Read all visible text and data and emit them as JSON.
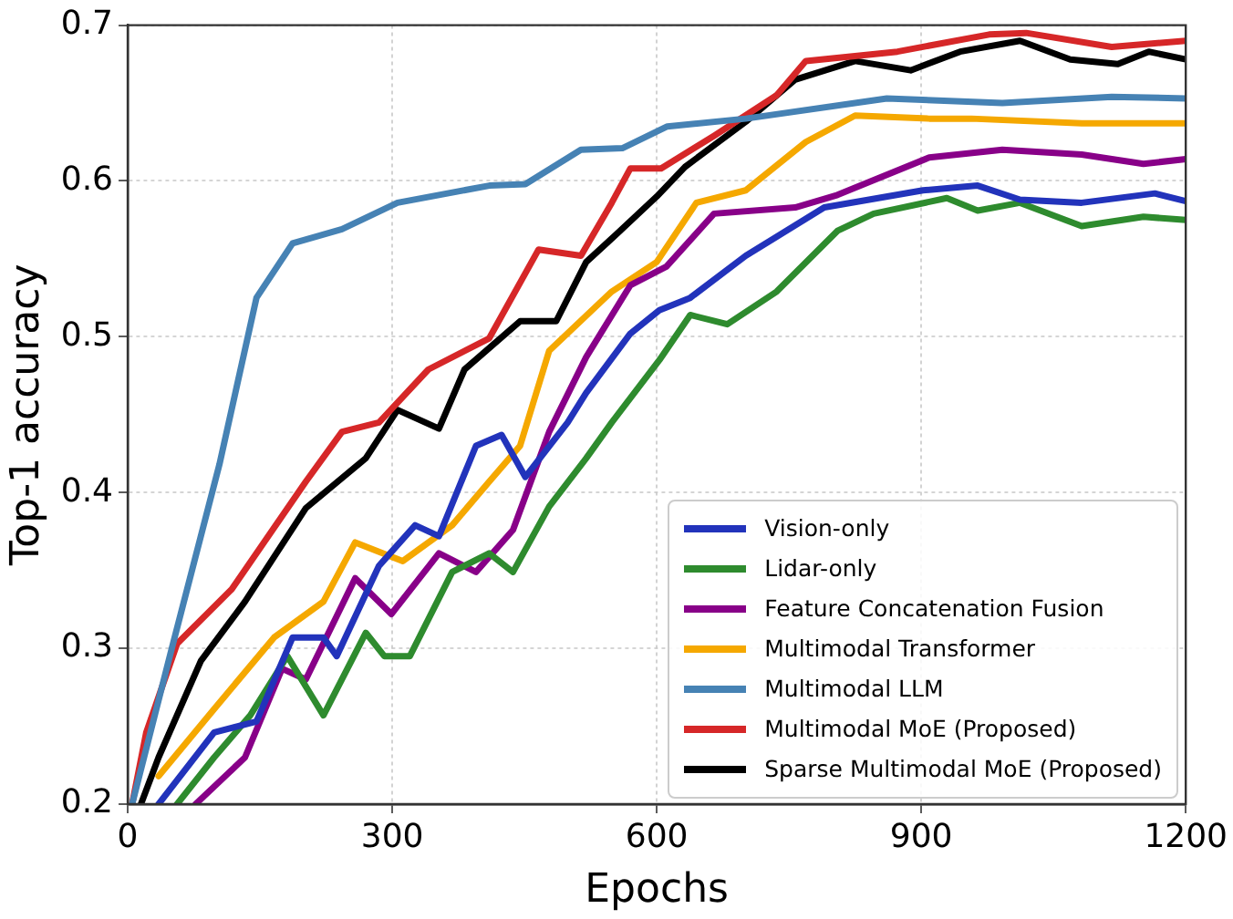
{
  "chart_data": {
    "type": "line",
    "xlabel": "Epochs",
    "ylabel": "Top-1 accuracy",
    "xlim": [
      0,
      1200
    ],
    "xticks": [
      0,
      300,
      600,
      900,
      1200
    ],
    "ylim": [
      0.2,
      0.7
    ],
    "yticks": [
      0.2,
      0.3,
      0.4,
      0.5,
      0.6,
      0.7
    ],
    "grid": true,
    "legend": "bottom right",
    "marker": "none",
    "line_style": "solid",
    "series": [
      {
        "name": "Vision-only",
        "color": "#2233bb",
        "x": [
          35,
          98,
          146,
          187,
          222,
          237,
          285,
          326,
          353,
          395,
          424,
          451,
          499,
          520,
          570,
          603,
          638,
          701,
          790,
          902,
          964,
          1012,
          1082,
          1165,
          1200
        ],
        "values": [
          0.2,
          0.246,
          0.253,
          0.307,
          0.307,
          0.295,
          0.353,
          0.379,
          0.372,
          0.43,
          0.437,
          0.41,
          0.445,
          0.464,
          0.502,
          0.517,
          0.525,
          0.552,
          0.583,
          0.594,
          0.597,
          0.588,
          0.586,
          0.592,
          0.587
        ]
      },
      {
        "name": "Lidar-only",
        "color": "#2e8b2e",
        "x": [
          56,
          98,
          139,
          181,
          222,
          270,
          291,
          320,
          368,
          410,
          437,
          478,
          520,
          549,
          603,
          638,
          680,
          736,
          805,
          846,
          929,
          964,
          1012,
          1082,
          1152,
          1200
        ],
        "values": [
          0.2,
          0.23,
          0.257,
          0.295,
          0.257,
          0.31,
          0.295,
          0.295,
          0.349,
          0.361,
          0.349,
          0.391,
          0.422,
          0.445,
          0.485,
          0.514,
          0.508,
          0.529,
          0.568,
          0.579,
          0.589,
          0.581,
          0.586,
          0.571,
          0.577,
          0.575
        ]
      },
      {
        "name": "Feature Concatenation Fusion",
        "color": "#880088",
        "x": [
          77,
          133,
          175,
          202,
          258,
          299,
          353,
          395,
          437,
          478,
          520,
          570,
          611,
          665,
          757,
          805,
          909,
          992,
          1082,
          1152,
          1200
        ],
        "values": [
          0.2,
          0.23,
          0.287,
          0.28,
          0.345,
          0.322,
          0.361,
          0.349,
          0.376,
          0.439,
          0.487,
          0.533,
          0.545,
          0.579,
          0.583,
          0.591,
          0.615,
          0.62,
          0.617,
          0.611,
          0.614
        ]
      },
      {
        "name": "Multimodal Transformer",
        "color": "#f5a800",
        "x": [
          35,
          98,
          166,
          222,
          258,
          312,
          368,
          410,
          445,
          478,
          549,
          600,
          645,
          701,
          769,
          825,
          909,
          957,
          1082,
          1200
        ],
        "values": [
          0.218,
          0.261,
          0.307,
          0.33,
          0.368,
          0.356,
          0.379,
          0.407,
          0.43,
          0.491,
          0.529,
          0.548,
          0.586,
          0.594,
          0.625,
          0.642,
          0.64,
          0.64,
          0.637,
          0.637
        ]
      },
      {
        "name": "Multimodal LLM",
        "color": "#4682b4",
        "x": [
          5,
          50,
          104,
          146,
          187,
          243,
          306,
          410,
          451,
          514,
          561,
          612,
          701,
          861,
          992,
          1116,
          1200
        ],
        "values": [
          0.2,
          0.3,
          0.418,
          0.525,
          0.56,
          0.569,
          0.586,
          0.597,
          0.598,
          0.62,
          0.621,
          0.635,
          0.64,
          0.653,
          0.65,
          0.654,
          0.653
        ]
      },
      {
        "name": "Multimodal MoE (Proposed)",
        "color": "#d62728",
        "x": [
          5,
          21,
          56,
          118,
          202,
          243,
          285,
          341,
          410,
          466,
          514,
          549,
          570,
          605,
          665,
          736,
          769,
          873,
          977,
          1019,
          1116,
          1200
        ],
        "values": [
          0.2,
          0.246,
          0.303,
          0.338,
          0.407,
          0.439,
          0.445,
          0.479,
          0.499,
          0.556,
          0.552,
          0.586,
          0.608,
          0.608,
          0.629,
          0.655,
          0.677,
          0.683,
          0.694,
          0.695,
          0.686,
          0.69
        ]
      },
      {
        "name": "Sparse Multimodal MoE (Proposed)",
        "color": "#000000",
        "x": [
          15,
          35,
          83,
          133,
          202,
          270,
          306,
          353,
          382,
          445,
          486,
          520,
          549,
          600,
          632,
          701,
          757,
          825,
          888,
          944,
          1012,
          1069,
          1123,
          1158,
          1200
        ],
        "values": [
          0.2,
          0.23,
          0.292,
          0.33,
          0.39,
          0.422,
          0.453,
          0.441,
          0.479,
          0.51,
          0.51,
          0.548,
          0.563,
          0.59,
          0.609,
          0.638,
          0.665,
          0.677,
          0.671,
          0.683,
          0.69,
          0.678,
          0.675,
          0.683,
          0.678
        ]
      }
    ]
  }
}
